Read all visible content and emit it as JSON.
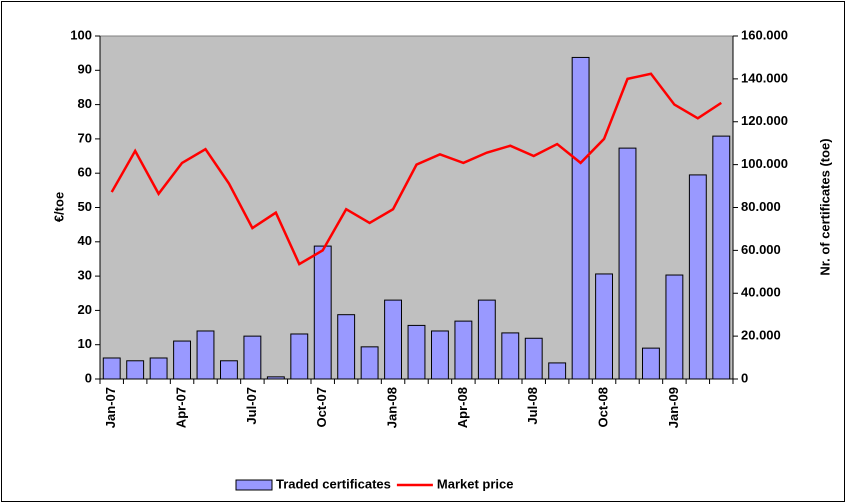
{
  "chart_data": {
    "type": "bar-line",
    "categories": [
      "Jan-07",
      null,
      null,
      "Apr-07",
      null,
      null,
      "Jul-07",
      null,
      null,
      "Oct-07",
      null,
      null,
      "Jan-08",
      null,
      null,
      "Apr-08",
      null,
      null,
      "Jul-08",
      null,
      null,
      "Oct-08",
      null,
      null,
      "Jan-09",
      null,
      null
    ],
    "series": [
      {
        "name": "Traded certificates",
        "type": "bar",
        "axis": "y2",
        "color": "#9999ff",
        "values": [
          9800,
          8500,
          9800,
          17700,
          22400,
          8500,
          20000,
          1000,
          21000,
          62000,
          30000,
          15000,
          36800,
          25000,
          22400,
          27000,
          36800,
          21500,
          19000,
          7500,
          150000,
          49000,
          107700,
          14400,
          48500,
          95200,
          113300
        ]
      },
      {
        "name": "Market price",
        "type": "line",
        "axis": "y",
        "color": "#ff0000",
        "values": [
          54.5,
          66.5,
          54,
          63,
          67,
          57,
          44,
          48.5,
          33.5,
          37.5,
          49.5,
          45.5,
          49.5,
          62.5,
          65.5,
          63,
          66,
          68,
          65,
          68.5,
          63,
          70,
          87.5,
          89,
          80,
          76,
          80.5
        ]
      }
    ],
    "ylabel": "€/toe",
    "y2label": "Nr. of certificates (toe)",
    "ylim": [
      0,
      100
    ],
    "yticks": [
      0,
      10,
      20,
      30,
      40,
      50,
      60,
      70,
      80,
      90,
      100
    ],
    "y2lim": [
      0,
      160000
    ],
    "y2ticks": [
      0,
      {
        "value": 20000,
        "label": "20.000"
      },
      {
        "value": 40000,
        "label": "40.000"
      },
      {
        "value": 60000,
        "label": "60.000"
      },
      {
        "value": 80000,
        "label": "80.000"
      },
      {
        "value": 100000,
        "label": "100.000"
      },
      {
        "value": 120000,
        "label": "120.000"
      },
      {
        "value": 140000,
        "label": "140.000"
      },
      {
        "value": 160000,
        "label": "160.000"
      }
    ],
    "legend": "bottom",
    "plot_background": "#c0c0c0"
  }
}
